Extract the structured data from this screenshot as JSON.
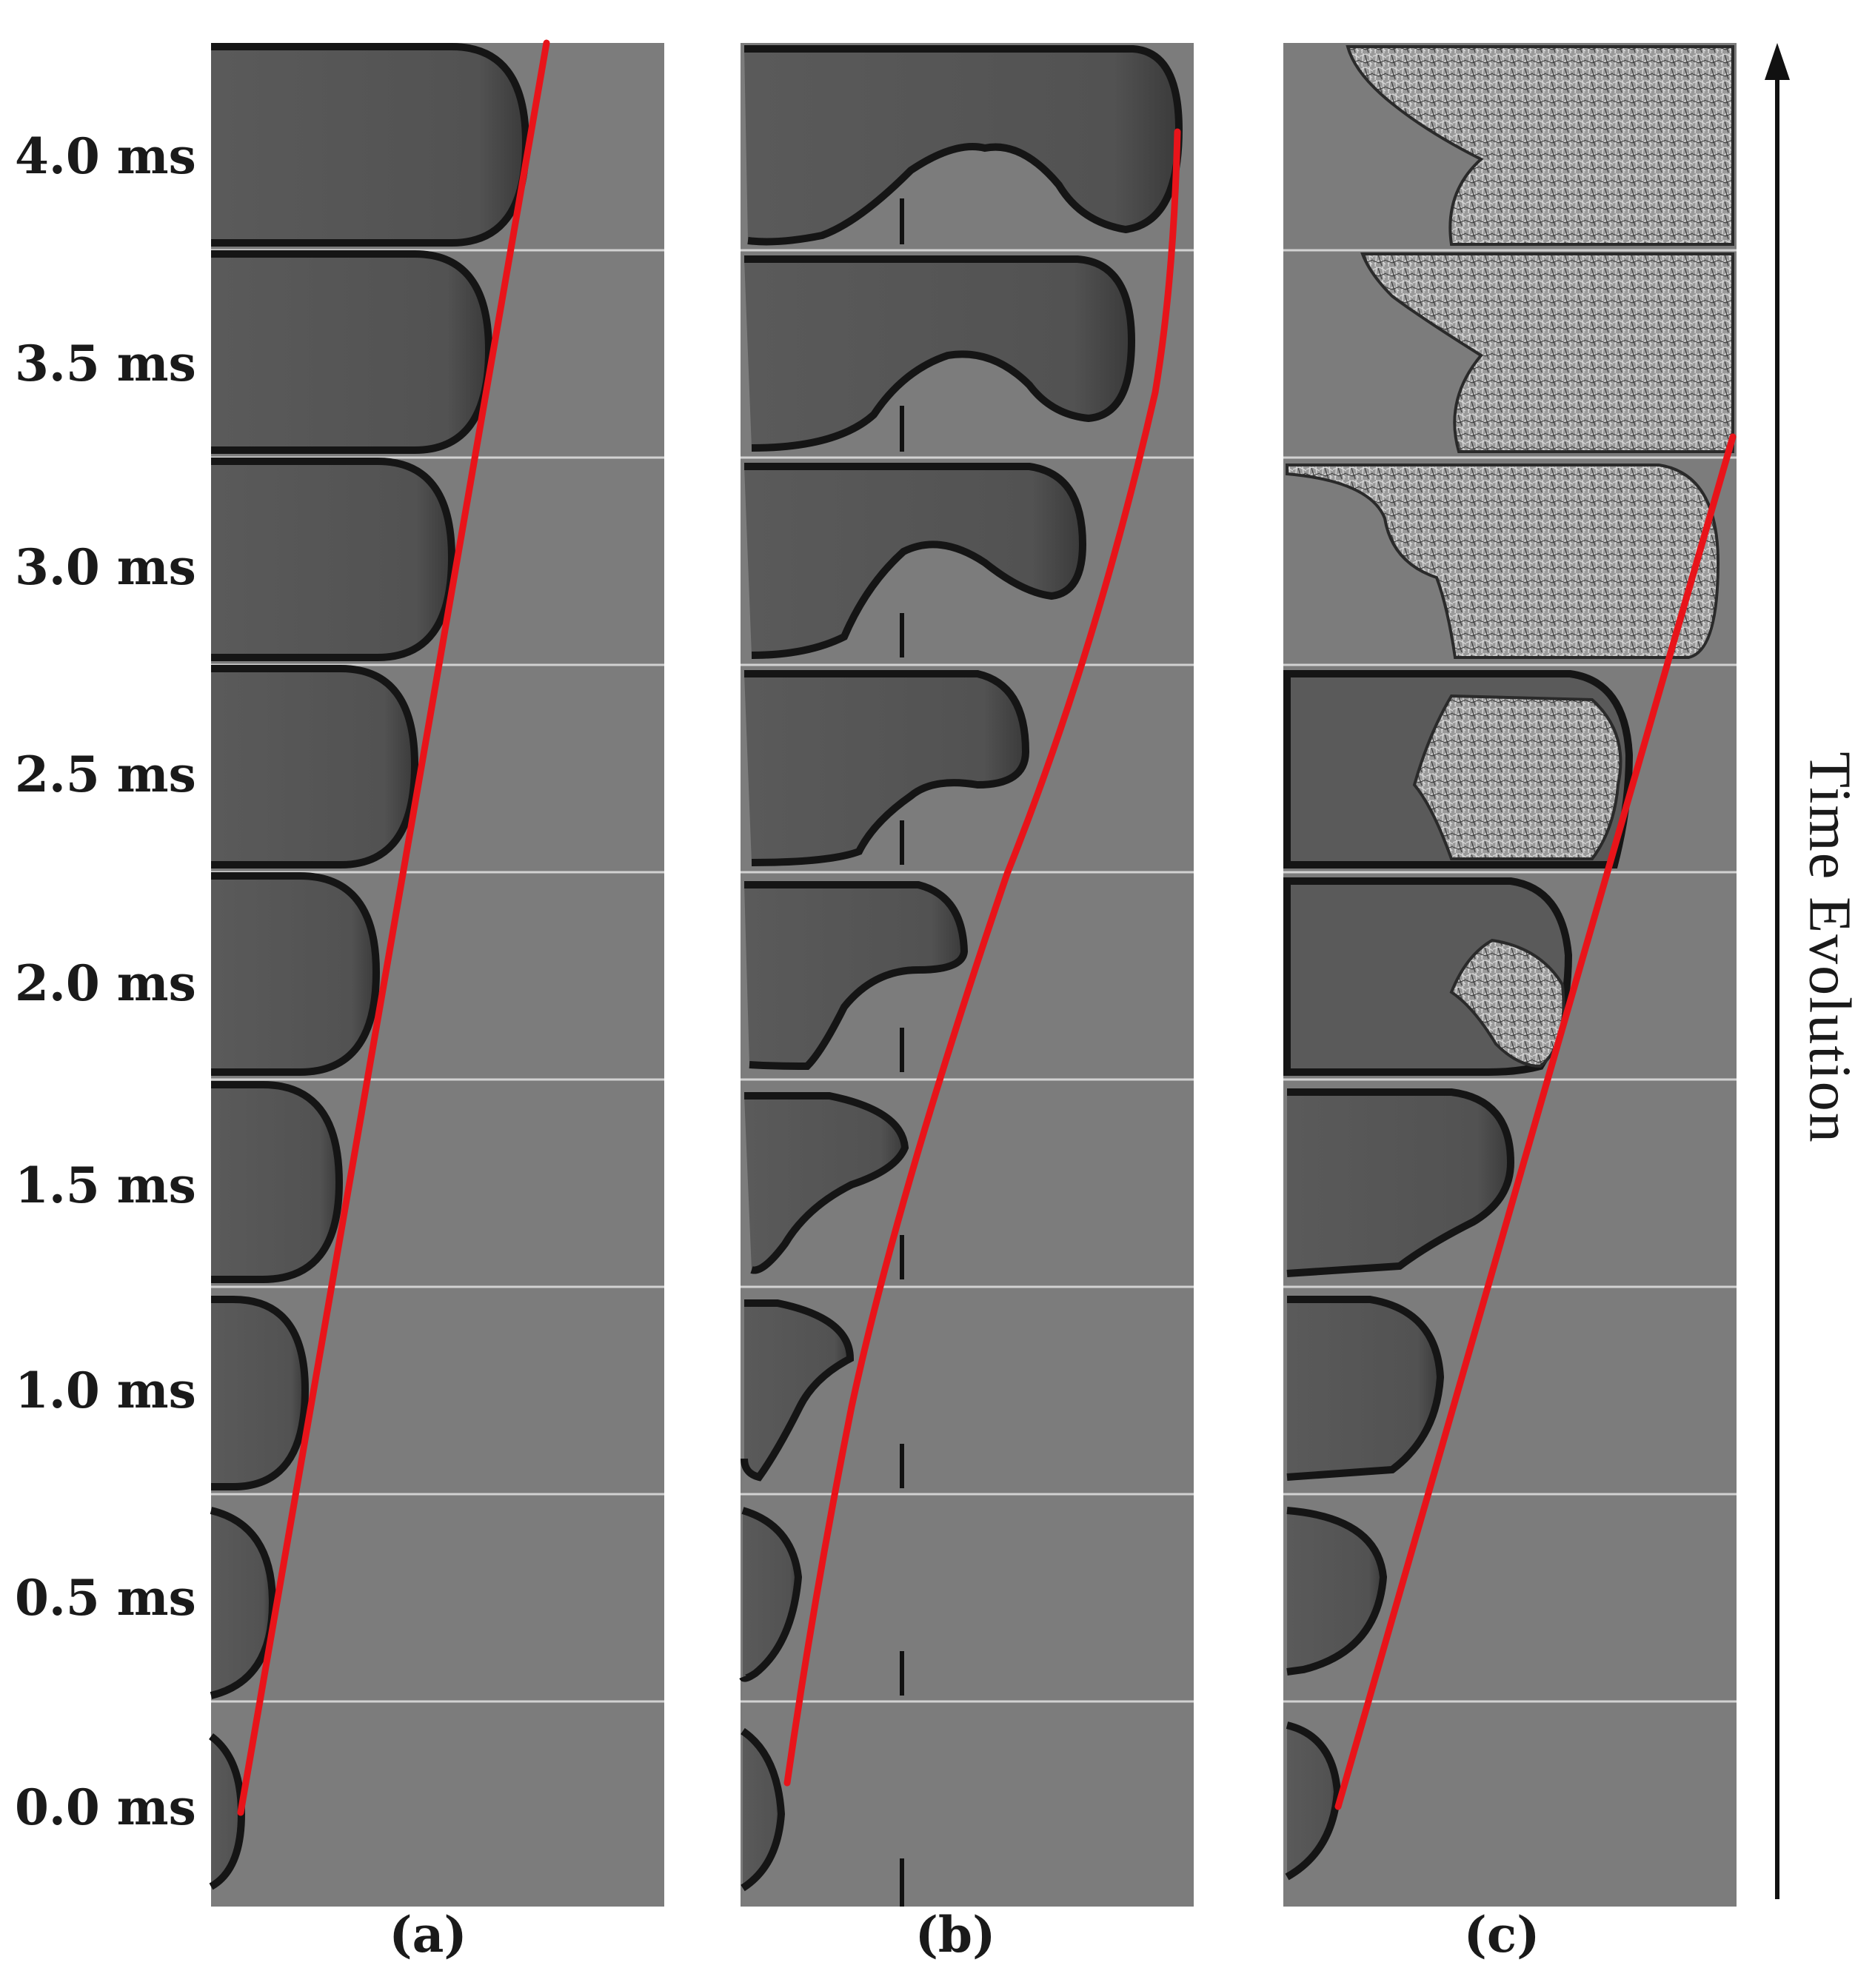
{
  "figure": {
    "time_labels": [
      "4.0 ms",
      "3.5 ms",
      "3.0 ms",
      "2.5 ms",
      "2.0 ms",
      "1.5 ms",
      "1.0 ms",
      "0.5 ms",
      "0.0 ms"
    ],
    "panels": [
      {
        "caption": "(a)"
      },
      {
        "caption": "(b)"
      },
      {
        "caption": "(c)"
      }
    ],
    "axis_label": "Time Evolution",
    "colors": {
      "background": "#7c7c7c",
      "droplet": "#575757",
      "edge": "#151515",
      "trajectory": "#e8141a",
      "text": "#1a1a1a"
    }
  }
}
